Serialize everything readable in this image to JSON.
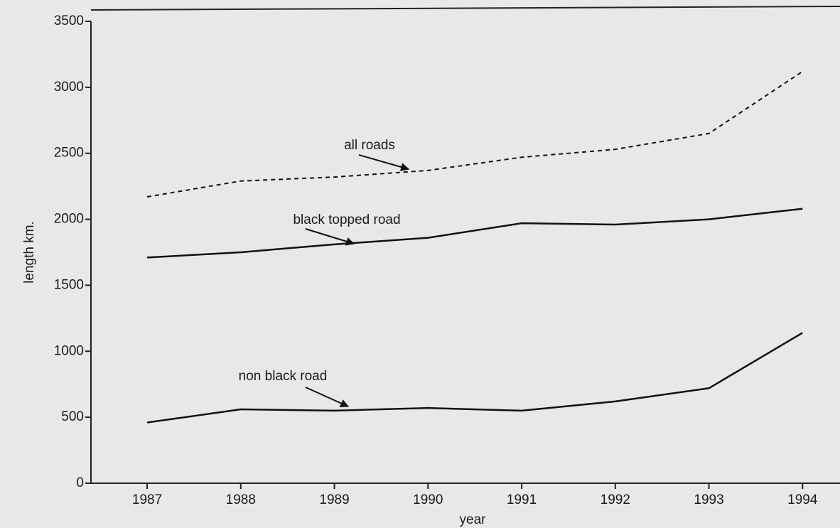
{
  "chart_data": {
    "type": "line",
    "x_label": "year",
    "y_label": "length km.",
    "x": [
      1987,
      1988,
      1989,
      1990,
      1991,
      1992,
      1993,
      1994
    ],
    "series": [
      {
        "name": "all roads",
        "color": "#111111",
        "dashed": true,
        "values": [
          2170,
          2290,
          2320,
          2370,
          2470,
          2530,
          2650,
          3120
        ]
      },
      {
        "name": "black topped road",
        "color": "#111111",
        "dashed": false,
        "values": [
          1710,
          1750,
          1810,
          1860,
          1970,
          1960,
          2000,
          2080
        ]
      },
      {
        "name": "non black road",
        "color": "#111111",
        "dashed": false,
        "values": [
          460,
          560,
          550,
          570,
          550,
          620,
          720,
          1140
        ]
      }
    ],
    "xlim": [
      1986.4,
      1994.4
    ],
    "xticks": [
      1987,
      1988,
      1989,
      1990,
      1991,
      1992,
      1993,
      1994
    ],
    "ylim": [
      0,
      3500
    ],
    "yticks": [
      0,
      500,
      1000,
      1500,
      2000,
      2500,
      3000,
      3500
    ],
    "grid": false
  }
}
